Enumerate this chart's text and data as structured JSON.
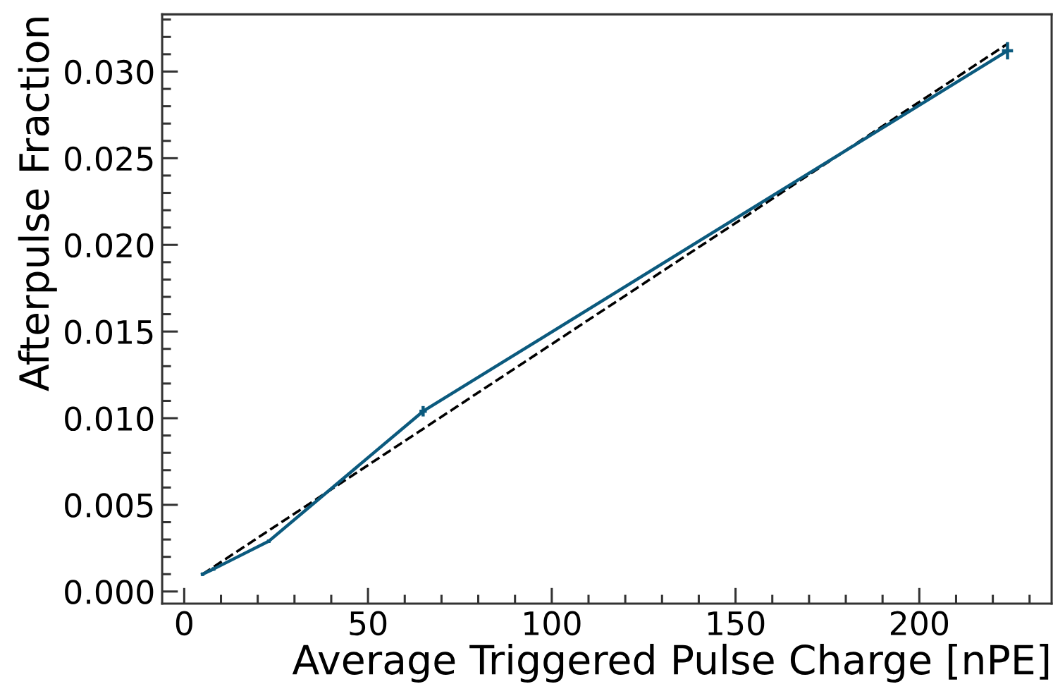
{
  "chart_data": {
    "type": "line",
    "xlabel": "Average Triggered Pulse Charge [nPE]",
    "ylabel": "Afterpulse Fraction",
    "xlim": [
      -6,
      236
    ],
    "ylim": [
      -0.0007,
      0.0333
    ],
    "xticks": [
      0,
      50,
      100,
      150,
      200
    ],
    "yticks": [
      {
        "value": 0,
        "label": "0.000"
      },
      {
        "value": 0.005,
        "label": "0.005"
      },
      {
        "value": 0.01,
        "label": "0.010"
      },
      {
        "value": 0.015,
        "label": "0.015"
      },
      {
        "value": 0.02,
        "label": "0.020"
      },
      {
        "value": 0.025,
        "label": "0.025"
      },
      {
        "value": 0.03,
        "label": "0.030"
      }
    ],
    "grid": false,
    "series": [
      {
        "color": "#0b5a7e",
        "x": [
          5,
          8,
          23,
          65,
          224
        ],
        "values": [
          0.001,
          0.0013,
          0.0029,
          0.0104,
          0.0312
        ],
        "errors": [
          0.0001,
          0.0001,
          0.0001,
          0.0003,
          0.0005
        ],
        "xerrors": [
          0.5,
          0.5,
          0.5,
          1,
          1.5
        ]
      },
      {
        "type": "line",
        "color": "#000000",
        "line_style": "dashed",
        "x": [
          5,
          224
        ],
        "values": [
          0.001,
          0.0316
        ]
      }
    ]
  }
}
